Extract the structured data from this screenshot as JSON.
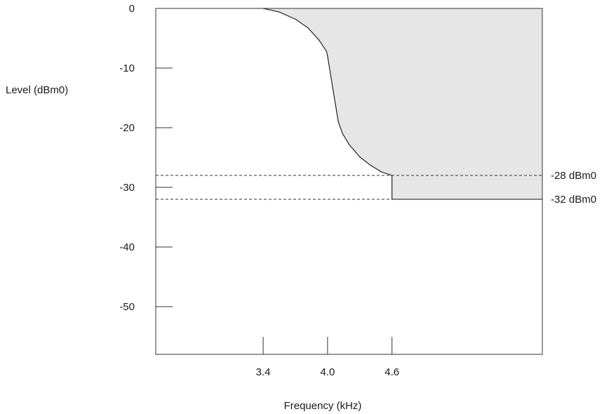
{
  "chart_data": {
    "type": "line",
    "title": "",
    "xlabel": "Frequency (kHz)",
    "ylabel": "Level (dBm0)",
    "xlim": [
      2.4,
      6.0
    ],
    "ylim": [
      -58,
      0
    ],
    "x_ticks": [
      {
        "value": 3.4,
        "label": "3.4"
      },
      {
        "value": 4.0,
        "label": "4.0"
      },
      {
        "value": 4.6,
        "label": "4.6"
      }
    ],
    "y_ticks": [
      {
        "value": 0,
        "label": "0"
      },
      {
        "value": -10,
        "label": "-10"
      },
      {
        "value": -20,
        "label": "-20"
      },
      {
        "value": -30,
        "label": "-30"
      },
      {
        "value": -40,
        "label": "-40"
      },
      {
        "value": -50,
        "label": "-50"
      }
    ],
    "reference_lines": [
      {
        "value": -28,
        "label": "-28 dBm0"
      },
      {
        "value": -32,
        "label": "-32 dBm0"
      }
    ],
    "series": [
      {
        "x": [
          3.4,
          3.55,
          3.7,
          3.82,
          3.92,
          3.99,
          4.0,
          4.05,
          4.1,
          4.14,
          4.2,
          4.3,
          4.4,
          4.5,
          4.6,
          4.6,
          6.0
        ],
        "y": [
          0,
          -0.6,
          -1.8,
          -3.3,
          -5.3,
          -7.2,
          -8.0,
          -13.5,
          -19.0,
          -21.0,
          -22.8,
          -24.9,
          -26.3,
          -27.4,
          -28.0,
          -32.0,
          -32.0
        ]
      }
    ],
    "shaded_region": "above curve",
    "shade_color": "#e6e6e6",
    "grid": false
  }
}
